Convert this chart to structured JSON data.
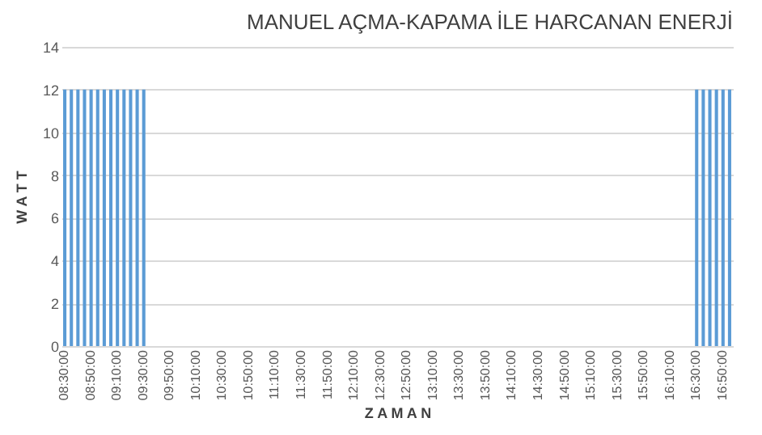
{
  "chart_data": {
    "type": "bar",
    "title": "MANUEL AÇMA-KAPAMA İLE HARCANAN ENERJİ",
    "xlabel": "Z A M A N",
    "ylabel": "W A T T",
    "categories": [
      "08:30:00",
      null,
      null,
      null,
      "08:50:00",
      null,
      null,
      null,
      "09:10:00",
      null,
      null,
      null,
      "09:30:00",
      null,
      null,
      null,
      "09:50:00",
      null,
      null,
      null,
      "10:10:00",
      null,
      null,
      null,
      "10:30:00",
      null,
      null,
      null,
      "10:50:00",
      null,
      null,
      null,
      "11:10:00",
      null,
      null,
      null,
      "11:30:00",
      null,
      null,
      null,
      "11:50:00",
      null,
      null,
      null,
      "12:10:00",
      null,
      null,
      null,
      "12:30:00",
      null,
      null,
      null,
      "12:50:00",
      null,
      null,
      null,
      "13:10:00",
      null,
      null,
      null,
      "13:30:00",
      null,
      null,
      null,
      "13:50:00",
      null,
      null,
      null,
      "14:10:00",
      null,
      null,
      null,
      "14:30:00",
      null,
      null,
      null,
      "14:50:00",
      null,
      null,
      null,
      "15:10:00",
      null,
      null,
      null,
      "15:30:00",
      null,
      null,
      null,
      "15:50:00",
      null,
      null,
      null,
      "16:10:00",
      null,
      null,
      null,
      "16:30:00",
      null,
      null,
      null,
      "16:50:00",
      null
    ],
    "values": [
      12,
      12,
      12,
      12,
      12,
      12,
      12,
      12,
      12,
      12,
      12,
      12,
      12,
      0,
      0,
      0,
      0,
      0,
      0,
      0,
      0,
      0,
      0,
      0,
      0,
      0,
      0,
      0,
      0,
      0,
      0,
      0,
      0,
      0,
      0,
      0,
      0,
      0,
      0,
      0,
      0,
      0,
      0,
      0,
      0,
      0,
      0,
      0,
      0,
      0,
      0,
      0,
      0,
      0,
      0,
      0,
      0,
      0,
      0,
      0,
      0,
      0,
      0,
      0,
      0,
      0,
      0,
      0,
      0,
      0,
      0,
      0,
      0,
      0,
      0,
      0,
      0,
      0,
      0,
      0,
      0,
      0,
      0,
      0,
      0,
      0,
      0,
      0,
      0,
      0,
      0,
      0,
      0,
      0,
      0,
      0,
      12,
      12,
      12,
      12,
      12,
      12
    ],
    "color": "#5b9bd5",
    "ylim": [
      0,
      14
    ],
    "yticks": [
      0,
      2,
      4,
      6,
      8,
      10,
      12,
      14
    ],
    "grid": "y"
  }
}
